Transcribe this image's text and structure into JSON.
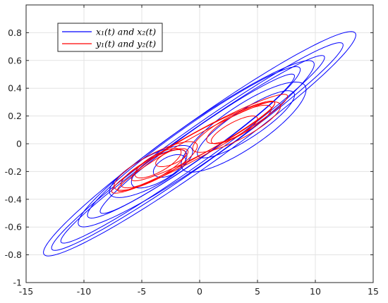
{
  "chart_data": {
    "type": "line",
    "title": "",
    "xlabel": "",
    "ylabel": "",
    "xlim": [
      -15,
      15
    ],
    "ylim": [
      -1,
      1
    ],
    "x_ticks": [
      -15,
      -10,
      -5,
      0,
      5,
      10,
      15
    ],
    "y_ticks": [
      -1,
      -0.8,
      -0.6,
      -0.4,
      -0.2,
      0,
      0.2,
      0.4,
      0.6,
      0.8
    ],
    "x_tick_labels": [
      "-15",
      "-10",
      "-5",
      "0",
      "5",
      "10",
      "15"
    ],
    "y_tick_labels": [
      "-1",
      "-0.8",
      "-0.6",
      "-0.4",
      "-0.2",
      "0",
      "0.2",
      "0.4",
      "0.6",
      "0.8"
    ],
    "grid": true,
    "legend": {
      "position": "top-left",
      "entries": [
        {
          "label": "x₁(t) and x₂(t)",
          "color": "#0000ff"
        },
        {
          "label": "y₁(t) and y₂(t)",
          "color": "#ff0000"
        }
      ]
    },
    "series": [
      {
        "name": "x₁(t) and x₂(t)",
        "color": "#0000ff",
        "loops": [
          {
            "center": [
              0.0,
              0.0
            ],
            "rx": 13.5,
            "ry": 0.2,
            "tilt": 0.058,
            "turns": 1.0
          },
          {
            "center": [
              -0.2,
              -0.02
            ],
            "rx": 12.6,
            "ry": 0.16,
            "tilt": 0.058,
            "turns": 1.0
          },
          {
            "center": [
              -0.6,
              -0.04
            ],
            "rx": 11.4,
            "ry": 0.14,
            "tilt": 0.058,
            "turns": 1.0
          },
          {
            "center": [
              -0.3,
              0.0
            ],
            "rx": 10.2,
            "ry": 0.18,
            "tilt": 0.056,
            "turns": 1.0
          },
          {
            "center": [
              -0.5,
              0.01
            ],
            "rx": 9.2,
            "ry": 0.15,
            "tilt": 0.057,
            "turns": 1.0
          },
          {
            "center": [
              -0.2,
              0.0
            ],
            "rx": 8.4,
            "ry": 0.12,
            "tilt": 0.058,
            "turns": 1.0
          },
          {
            "center": [
              3.8,
              0.12
            ],
            "rx": 5.4,
            "ry": 0.18,
            "tilt": 0.05,
            "turns": 1.0
          },
          {
            "center": [
              4.0,
              0.14
            ],
            "rx": 4.2,
            "ry": 0.12,
            "tilt": 0.05,
            "turns": 1.0
          },
          {
            "center": [
              -4.2,
              -0.2
            ],
            "rx": 3.6,
            "ry": 0.12,
            "tilt": 0.04,
            "turns": 1.0
          },
          {
            "center": [
              -3.5,
              -0.18
            ],
            "rx": 2.4,
            "ry": 0.1,
            "tilt": 0.04,
            "turns": 1.0
          },
          {
            "center": [
              -2.6,
              -0.16
            ],
            "rx": 1.4,
            "ry": 0.07,
            "tilt": 0.03,
            "turns": 1.0
          }
        ]
      },
      {
        "name": "y₁(t) and y₂(t)",
        "color": "#ff0000",
        "loops": [
          {
            "center": [
              0.0,
              0.0
            ],
            "rx": 7.6,
            "ry": 0.1,
            "tilt": 0.045,
            "turns": 1.0
          },
          {
            "center": [
              -0.3,
              -0.02
            ],
            "rx": 6.8,
            "ry": 0.08,
            "tilt": 0.046,
            "turns": 1.0
          },
          {
            "center": [
              0.3,
              0.02
            ],
            "rx": 6.2,
            "ry": 0.09,
            "tilt": 0.044,
            "turns": 1.0
          },
          {
            "center": [
              3.2,
              0.12
            ],
            "rx": 3.8,
            "ry": 0.1,
            "tilt": 0.04,
            "turns": 1.0
          },
          {
            "center": [
              3.4,
              0.14
            ],
            "rx": 2.8,
            "ry": 0.08,
            "tilt": 0.04,
            "turns": 1.0
          },
          {
            "center": [
              3.0,
              0.1
            ],
            "rx": 2.0,
            "ry": 0.06,
            "tilt": 0.04,
            "turns": 1.0
          },
          {
            "center": [
              -3.8,
              -0.16
            ],
            "rx": 3.6,
            "ry": 0.1,
            "tilt": 0.04,
            "turns": 1.0
          },
          {
            "center": [
              -4.0,
              -0.18
            ],
            "rx": 2.8,
            "ry": 0.08,
            "tilt": 0.04,
            "turns": 1.0
          },
          {
            "center": [
              -3.6,
              -0.14
            ],
            "rx": 2.0,
            "ry": 0.07,
            "tilt": 0.04,
            "turns": 1.0
          },
          {
            "center": [
              -2.4,
              -0.1
            ],
            "rx": 1.4,
            "ry": 0.05,
            "tilt": 0.03,
            "turns": 1.0
          }
        ]
      }
    ]
  }
}
